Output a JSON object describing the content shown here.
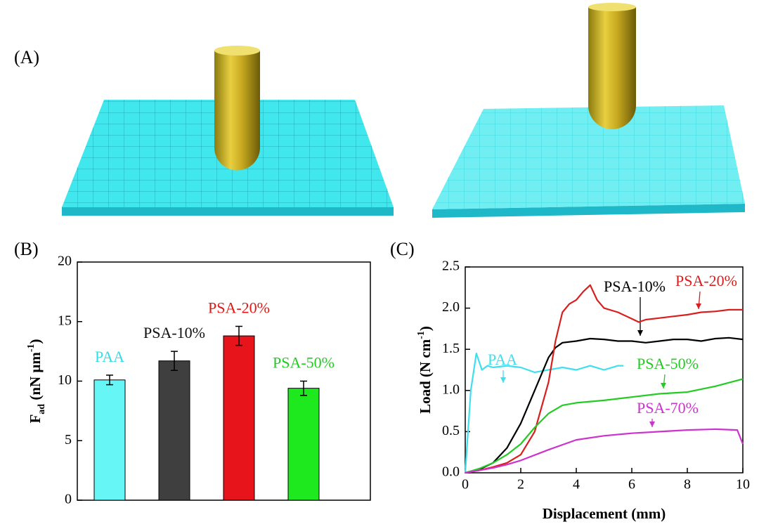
{
  "illustration": {
    "label": "(A)"
  },
  "chart_data": [
    {
      "type": "bar",
      "label": "(B)",
      "ylabel": [
        "F",
        "ad",
        " (nN μm",
        "-1",
        ")"
      ],
      "categories": [
        "PAA",
        "PSA-10%",
        "PSA-20%",
        "PSA-50%"
      ],
      "values": [
        10.1,
        11.7,
        13.8,
        9.4
      ],
      "errors": [
        0.4,
        0.8,
        0.8,
        0.6
      ],
      "colors": [
        "#66f6f6",
        "#3f3f3f",
        "#e8141b",
        "#1ee81e"
      ],
      "label_colors": [
        "#33dde6",
        "#111111",
        "#e01818",
        "#22cc22"
      ],
      "ylim": [
        0,
        20
      ],
      "yticks": [
        0,
        5,
        10,
        15,
        20
      ]
    },
    {
      "type": "line",
      "label": "(C)",
      "xlabel": "Displacement (mm)",
      "ylabel": [
        "Load (N cm",
        "-1",
        ")"
      ],
      "xlim": [
        0,
        10
      ],
      "xticks": [
        0,
        2,
        4,
        6,
        8,
        10
      ],
      "ylim": [
        0,
        2.5
      ],
      "yticks": [
        {
          "value": 0,
          "label": "0.0"
        },
        0.5,
        {
          "value": 1,
          "label": "1.0"
        },
        1.5,
        {
          "value": 2,
          "label": "2.0"
        },
        2.5
      ],
      "series": [
        {
          "name": "PAA",
          "color": "#3ee0ee",
          "x": [
            0,
            0.2,
            0.4,
            0.6,
            0.8,
            1,
            1.5,
            2,
            2.5,
            3,
            3.5,
            4,
            4.5,
            5,
            5.5,
            5.7
          ],
          "values": [
            0,
            1.0,
            1.45,
            1.25,
            1.3,
            1.28,
            1.3,
            1.28,
            1.22,
            1.25,
            1.28,
            1.25,
            1.3,
            1.25,
            1.3,
            1.3
          ]
        },
        {
          "name": "PSA-10%",
          "color": "#000000",
          "x": [
            0,
            0.5,
            1,
            1.5,
            2,
            2.5,
            3,
            3.25,
            3.5,
            4,
            4.5,
            5,
            5.5,
            6,
            6.5,
            7,
            7.5,
            8,
            8.5,
            9,
            9.5,
            10
          ],
          "values": [
            0,
            0.04,
            0.12,
            0.3,
            0.6,
            1.0,
            1.4,
            1.52,
            1.58,
            1.6,
            1.63,
            1.62,
            1.6,
            1.6,
            1.58,
            1.6,
            1.62,
            1.62,
            1.6,
            1.63,
            1.64,
            1.62
          ]
        },
        {
          "name": "PSA-20%",
          "color": "#d91e1e",
          "x": [
            0,
            0.5,
            1,
            1.5,
            2,
            2.5,
            3,
            3.25,
            3.5,
            3.75,
            4,
            4.25,
            4.5,
            4.75,
            5,
            5.5,
            6,
            6.25,
            6.5,
            7,
            7.5,
            8,
            8.5,
            9,
            9.5,
            10
          ],
          "values": [
            0,
            0.03,
            0.07,
            0.12,
            0.22,
            0.5,
            1.1,
            1.6,
            1.95,
            2.05,
            2.1,
            2.2,
            2.28,
            2.1,
            2.0,
            1.95,
            1.87,
            1.83,
            1.86,
            1.88,
            1.9,
            1.92,
            1.95,
            1.96,
            1.98,
            1.98
          ]
        },
        {
          "name": "PSA-50%",
          "color": "#22cc22",
          "x": [
            0,
            0.5,
            1,
            1.5,
            2,
            2.5,
            3,
            3.5,
            4,
            5,
            6,
            7,
            8,
            9,
            10
          ],
          "values": [
            0,
            0.05,
            0.12,
            0.22,
            0.35,
            0.55,
            0.72,
            0.82,
            0.85,
            0.88,
            0.92,
            0.96,
            0.98,
            1.05,
            1.14
          ]
        },
        {
          "name": "PSA-70%",
          "color": "#cc33cc",
          "x": [
            0,
            0.5,
            1,
            1.5,
            2,
            3,
            4,
            5,
            6,
            7,
            8,
            9,
            9.8,
            10
          ],
          "values": [
            0,
            0.03,
            0.06,
            0.1,
            0.15,
            0.28,
            0.4,
            0.45,
            0.48,
            0.5,
            0.52,
            0.53,
            0.52,
            0.35
          ]
        }
      ]
    }
  ]
}
